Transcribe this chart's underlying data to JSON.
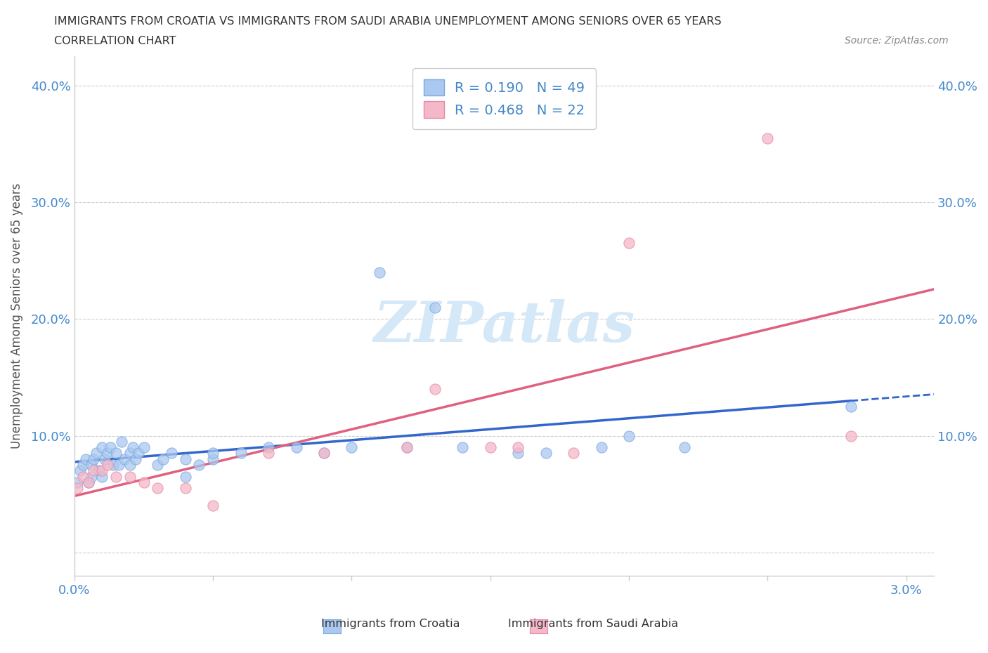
{
  "title_line1": "IMMIGRANTS FROM CROATIA VS IMMIGRANTS FROM SAUDI ARABIA UNEMPLOYMENT AMONG SENIORS OVER 65 YEARS",
  "title_line2": "CORRELATION CHART",
  "source": "Source: ZipAtlas.com",
  "ylabel": "Unemployment Among Seniors over 65 years",
  "xlim": [
    0.0,
    0.031
  ],
  "ylim": [
    -0.02,
    0.425
  ],
  "xticks": [
    0.0,
    0.005,
    0.01,
    0.015,
    0.02,
    0.025,
    0.03
  ],
  "xticklabels": [
    "0.0%",
    "",
    "",
    "",
    "",
    "",
    "3.0%"
  ],
  "ytick_positions": [
    0.0,
    0.1,
    0.2,
    0.3,
    0.4
  ],
  "ytick_labels": [
    "",
    "10.0%",
    "20.0%",
    "30.0%",
    "40.0%"
  ],
  "croatia_R": 0.19,
  "croatia_N": 49,
  "saudi_R": 0.468,
  "saudi_N": 22,
  "croatia_color": "#aac8f0",
  "croatia_edge": "#7aaadf",
  "saudi_color": "#f5b8c8",
  "saudi_edge": "#e888a8",
  "croatia_line_color": "#3366cc",
  "saudi_line_color": "#e06080",
  "watermark_color": "#d5e8f8",
  "grid_color": "#cccccc",
  "tick_label_color": "#4488cc",
  "ylabel_color": "#555555",
  "title_color": "#333333",
  "source_color": "#888888",
  "croatia_x": [
    0.0001,
    0.0002,
    0.0003,
    0.0004,
    0.0005,
    0.0006,
    0.0006,
    0.0007,
    0.0008,
    0.0009,
    0.001,
    0.001,
    0.0011,
    0.0012,
    0.0013,
    0.0014,
    0.0015,
    0.0016,
    0.0017,
    0.0018,
    0.002,
    0.002,
    0.0021,
    0.0022,
    0.0023,
    0.0025,
    0.003,
    0.0032,
    0.0035,
    0.004,
    0.004,
    0.0045,
    0.005,
    0.005,
    0.006,
    0.007,
    0.008,
    0.009,
    0.01,
    0.011,
    0.012,
    0.013,
    0.014,
    0.016,
    0.017,
    0.019,
    0.02,
    0.022,
    0.028
  ],
  "croatia_y": [
    0.06,
    0.07,
    0.075,
    0.08,
    0.06,
    0.065,
    0.075,
    0.08,
    0.085,
    0.07,
    0.065,
    0.09,
    0.08,
    0.085,
    0.09,
    0.075,
    0.085,
    0.075,
    0.095,
    0.08,
    0.075,
    0.085,
    0.09,
    0.08,
    0.085,
    0.09,
    0.075,
    0.08,
    0.085,
    0.065,
    0.08,
    0.075,
    0.08,
    0.085,
    0.085,
    0.09,
    0.09,
    0.085,
    0.09,
    0.24,
    0.09,
    0.21,
    0.09,
    0.085,
    0.085,
    0.09,
    0.1,
    0.09,
    0.125
  ],
  "saudi_x": [
    0.0001,
    0.0003,
    0.0005,
    0.0007,
    0.001,
    0.0012,
    0.0015,
    0.002,
    0.0025,
    0.003,
    0.004,
    0.005,
    0.007,
    0.009,
    0.012,
    0.013,
    0.015,
    0.016,
    0.018,
    0.02,
    0.025,
    0.028
  ],
  "saudi_y": [
    0.055,
    0.065,
    0.06,
    0.07,
    0.07,
    0.075,
    0.065,
    0.065,
    0.06,
    0.055,
    0.055,
    0.04,
    0.085,
    0.085,
    0.09,
    0.14,
    0.09,
    0.09,
    0.085,
    0.265,
    0.355,
    0.1
  ]
}
